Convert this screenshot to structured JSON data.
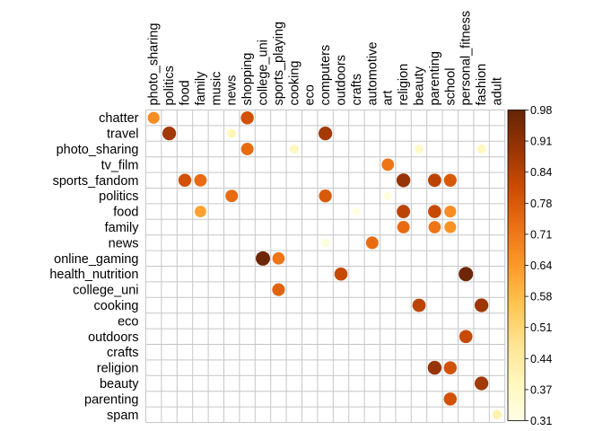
{
  "chart_data": {
    "type": "heatmap",
    "style": "correlation dot plot (circle size and color scale with value)",
    "columns": [
      "photo_sharing",
      "politics",
      "food",
      "family",
      "music",
      "news",
      "shopping",
      "college_uni",
      "sports_playing",
      "cooking",
      "eco",
      "computers",
      "outdoors",
      "crafts",
      "automotive",
      "art",
      "religion",
      "beauty",
      "parenting",
      "school",
      "personal_fitness",
      "fashion",
      "adult"
    ],
    "rows": [
      "chatter",
      "travel",
      "photo_sharing",
      "tv_film",
      "sports_fandom",
      "politics",
      "food",
      "family",
      "news",
      "online_gaming",
      "health_nutrition",
      "college_uni",
      "cooking",
      "eco",
      "outdoors",
      "crafts",
      "religion",
      "beauty",
      "parenting",
      "spam"
    ],
    "cells": [
      {
        "row": "chatter",
        "col": "photo_sharing",
        "value": 0.67
      },
      {
        "row": "chatter",
        "col": "shopping",
        "value": 0.8
      },
      {
        "row": "travel",
        "col": "politics",
        "value": 0.88
      },
      {
        "row": "travel",
        "col": "news",
        "value": 0.4
      },
      {
        "row": "travel",
        "col": "computers",
        "value": 0.88
      },
      {
        "row": "photo_sharing",
        "col": "shopping",
        "value": 0.74
      },
      {
        "row": "photo_sharing",
        "col": "cooking",
        "value": 0.39
      },
      {
        "row": "photo_sharing",
        "col": "beauty",
        "value": 0.37
      },
      {
        "row": "photo_sharing",
        "col": "fashion",
        "value": 0.39
      },
      {
        "row": "tv_film",
        "col": "art",
        "value": 0.72
      },
      {
        "row": "sports_fandom",
        "col": "food",
        "value": 0.8
      },
      {
        "row": "sports_fandom",
        "col": "family",
        "value": 0.74
      },
      {
        "row": "sports_fandom",
        "col": "religion",
        "value": 0.9
      },
      {
        "row": "sports_fandom",
        "col": "parenting",
        "value": 0.84
      },
      {
        "row": "sports_fandom",
        "col": "school",
        "value": 0.78
      },
      {
        "row": "politics",
        "col": "news",
        "value": 0.74
      },
      {
        "row": "politics",
        "col": "computers",
        "value": 0.78
      },
      {
        "row": "politics",
        "col": "art",
        "value": 0.33
      },
      {
        "row": "food",
        "col": "family",
        "value": 0.63
      },
      {
        "row": "food",
        "col": "crafts",
        "value": 0.32
      },
      {
        "row": "food",
        "col": "religion",
        "value": 0.84
      },
      {
        "row": "food",
        "col": "parenting",
        "value": 0.82
      },
      {
        "row": "food",
        "col": "school",
        "value": 0.67
      },
      {
        "row": "family",
        "col": "religion",
        "value": 0.74
      },
      {
        "row": "family",
        "col": "parenting",
        "value": 0.72
      },
      {
        "row": "family",
        "col": "school",
        "value": 0.66
      },
      {
        "row": "news",
        "col": "computers",
        "value": 0.33
      },
      {
        "row": "news",
        "col": "automotive",
        "value": 0.74
      },
      {
        "row": "online_gaming",
        "col": "college_uni",
        "value": 0.97
      },
      {
        "row": "online_gaming",
        "col": "sports_playing",
        "value": 0.72
      },
      {
        "row": "health_nutrition",
        "col": "outdoors",
        "value": 0.82
      },
      {
        "row": "health_nutrition",
        "col": "personal_fitness",
        "value": 0.97
      },
      {
        "row": "college_uni",
        "col": "sports_playing",
        "value": 0.76
      },
      {
        "row": "cooking",
        "col": "beauty",
        "value": 0.84
      },
      {
        "row": "cooking",
        "col": "fashion",
        "value": 0.89
      },
      {
        "row": "outdoors",
        "col": "personal_fitness",
        "value": 0.82
      },
      {
        "row": "religion",
        "col": "parenting",
        "value": 0.9
      },
      {
        "row": "religion",
        "col": "school",
        "value": 0.8
      },
      {
        "row": "beauty",
        "col": "fashion",
        "value": 0.88
      },
      {
        "row": "parenting",
        "col": "school",
        "value": 0.8
      },
      {
        "row": "spam",
        "col": "adult",
        "value": 0.42
      }
    ],
    "colorbar": {
      "min": 0.31,
      "max": 0.98,
      "ticks": [
        "0.98",
        "0.91",
        "0.84",
        "0.78",
        "0.71",
        "0.64",
        "0.58",
        "0.51",
        "0.44",
        "0.37",
        "0.31"
      ],
      "colors": [
        "#FFFFE5",
        "#FFF7BC",
        "#FEE391",
        "#FEC44F",
        "#FE9929",
        "#EC7014",
        "#CC4C02",
        "#993404",
        "#662506"
      ]
    },
    "grid": true,
    "legend": "right"
  }
}
